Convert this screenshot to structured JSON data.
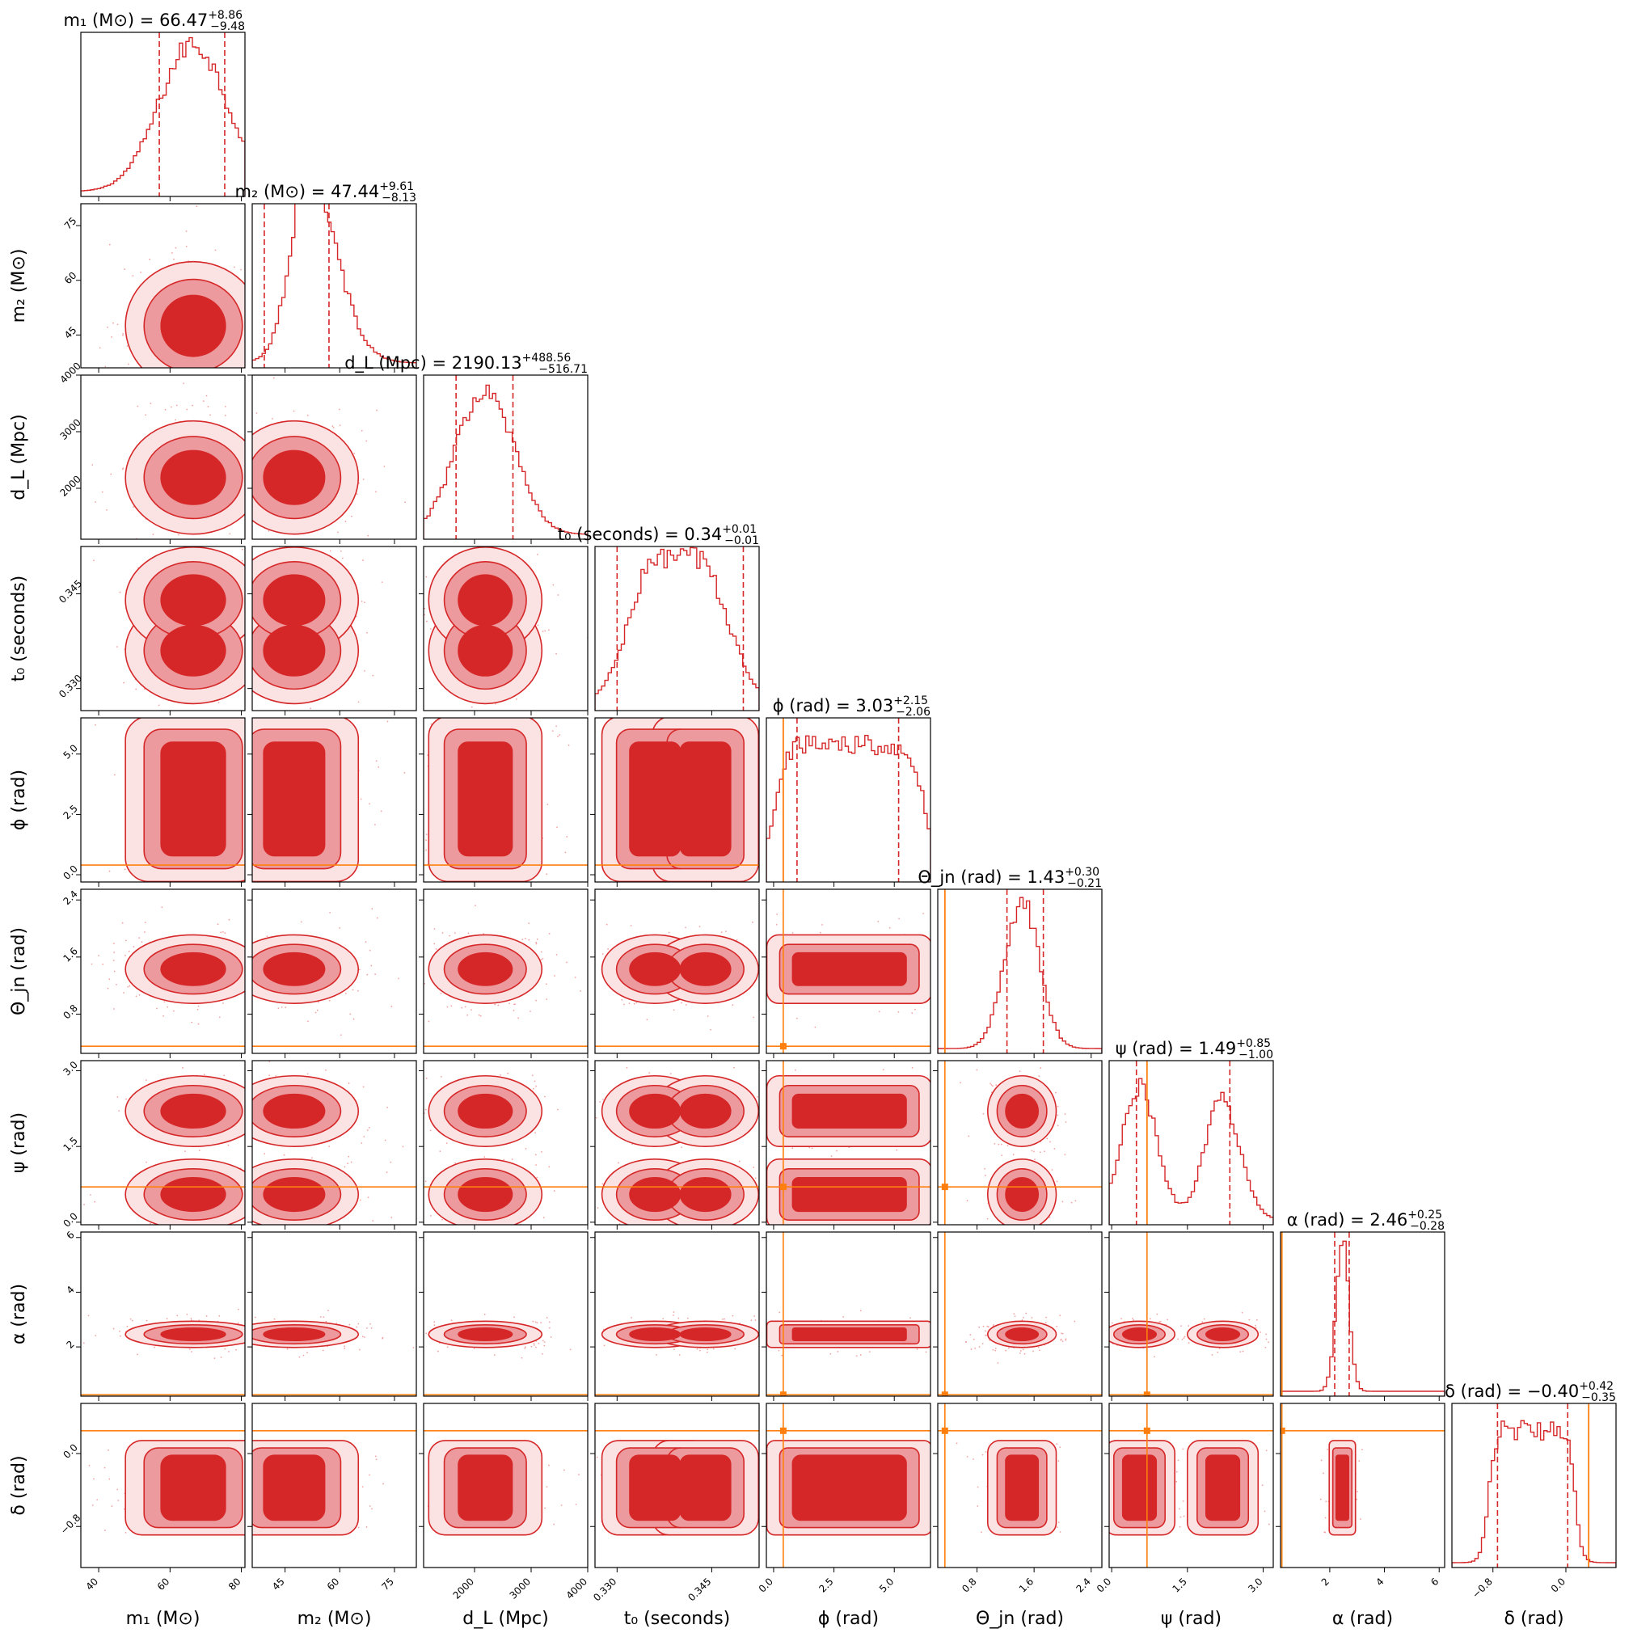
{
  "chart_data": {
    "type": "corner",
    "colors": {
      "posterior": "#d62728",
      "truth": "#ff7f0e",
      "axes": "#000000"
    },
    "parameters": [
      {
        "label": "m₁ (M⊙)",
        "title": "m₁ (M⊙) = 66.47",
        "median": 66.47,
        "plus": "+8.86",
        "minus": "−9.48",
        "range": [
          35,
          81
        ],
        "ticks": [
          40,
          60,
          80
        ],
        "tick_labels": [
          "40",
          "60",
          "80"
        ]
      },
      {
        "label": "m₂ (M⊙)",
        "title": "m₂ (M⊙) = 47.44",
        "median": 47.44,
        "plus": "+9.61",
        "minus": "−8.13",
        "range": [
          36,
          81
        ],
        "ticks": [
          45,
          60,
          75
        ],
        "tick_labels": [
          "45",
          "60",
          "75"
        ]
      },
      {
        "label": "d_L (Mpc)",
        "title": "d_L (Mpc) = 2190.13",
        "median": 2190.13,
        "plus": "+488.56",
        "minus": "−516.71",
        "range": [
          1100,
          4000
        ],
        "ticks": [
          2000,
          3000,
          4000
        ],
        "tick_labels": [
          "2000",
          "3000",
          "4000"
        ]
      },
      {
        "label": "t₀ (seconds)",
        "title": "t₀ (seconds) = 0.34",
        "median": 0.34,
        "plus": "+0.01",
        "minus": "−0.01",
        "range": [
          0.3265,
          0.3525
        ],
        "ticks": [
          0.33,
          0.345
        ],
        "tick_labels": [
          "0.330",
          "0.345"
        ]
      },
      {
        "label": "ϕ (rad)",
        "title": "ϕ (rad) = 3.03",
        "median": 3.03,
        "plus": "+2.15",
        "minus": "−2.06",
        "range": [
          -0.3,
          6.5
        ],
        "ticks": [
          0,
          2.5,
          5
        ],
        "tick_labels": [
          "0.0",
          "2.5",
          "5.0"
        ]
      },
      {
        "label": "Θ_jn (rad)",
        "title": "Θ_jn (rad) = 1.43",
        "median": 1.43,
        "plus": "+0.30",
        "minus": "−0.21",
        "range": [
          0.25,
          2.55
        ],
        "ticks": [
          0.8,
          1.6,
          2.4
        ],
        "tick_labels": [
          "0.8",
          "1.6",
          "2.4"
        ]
      },
      {
        "label": "ψ (rad)",
        "title": "ψ (rad) = 1.49",
        "median": 1.49,
        "plus": "+0.85",
        "minus": "−1.00",
        "range": [
          -0.05,
          3.2
        ],
        "ticks": [
          0,
          1.5,
          3
        ],
        "tick_labels": [
          "0.0",
          "1.5",
          "3.0"
        ]
      },
      {
        "label": "α (rad)",
        "title": "α (rad) = 2.46",
        "median": 2.46,
        "plus": "+0.25",
        "minus": "−0.28",
        "range": [
          0.2,
          6.2
        ],
        "ticks": [
          2,
          4,
          6
        ],
        "tick_labels": [
          "2",
          "4",
          "6"
        ]
      },
      {
        "label": "δ (rad)",
        "title": "δ (rad) = −0.40",
        "median": -0.4,
        "plus": "+0.42",
        "minus": "−0.35",
        "range": [
          -1.25,
          0.55
        ],
        "ticks": [
          -0.8,
          0
        ],
        "tick_labels": [
          "−0.8",
          "0.0"
        ]
      }
    ],
    "quantile_lines": [
      [
        56.99,
        75.33
      ],
      [
        39.31,
        57.05
      ],
      [
        1673.42,
        2678.69
      ],
      [
        0.33,
        0.35
      ],
      [
        0.97,
        5.18
      ],
      [
        1.22,
        1.73
      ],
      [
        0.49,
        2.34
      ],
      [
        2.18,
        2.71
      ],
      [
        -0.75,
        0.02
      ]
    ],
    "injected": [
      null,
      null,
      null,
      null,
      0.4,
      0.35,
      0.7,
      0.25,
      0.25
    ],
    "histograms": [
      {
        "shape": "peak",
        "mean": 66.5,
        "sd": 9.5
      },
      {
        "shape": "skew",
        "mean": 47.5,
        "sd": 8.8
      },
      {
        "shape": "peak",
        "mean": 2190,
        "sd": 500
      },
      {
        "shape": "bimodal",
        "centers": [
          0.336,
          0.344
        ],
        "sd": 0.0042
      },
      {
        "shape": "flat",
        "low": 0,
        "high": 6.28
      },
      {
        "shape": "peak",
        "mean": 1.43,
        "sd": 0.24
      },
      {
        "shape": "bimodal",
        "centers": [
          0.55,
          2.2
        ],
        "sd": 0.35
      },
      {
        "shape": "peak",
        "mean": 2.46,
        "sd": 0.24
      },
      {
        "shape": "flat",
        "low": -0.85,
        "high": 0.1
      }
    ]
  }
}
